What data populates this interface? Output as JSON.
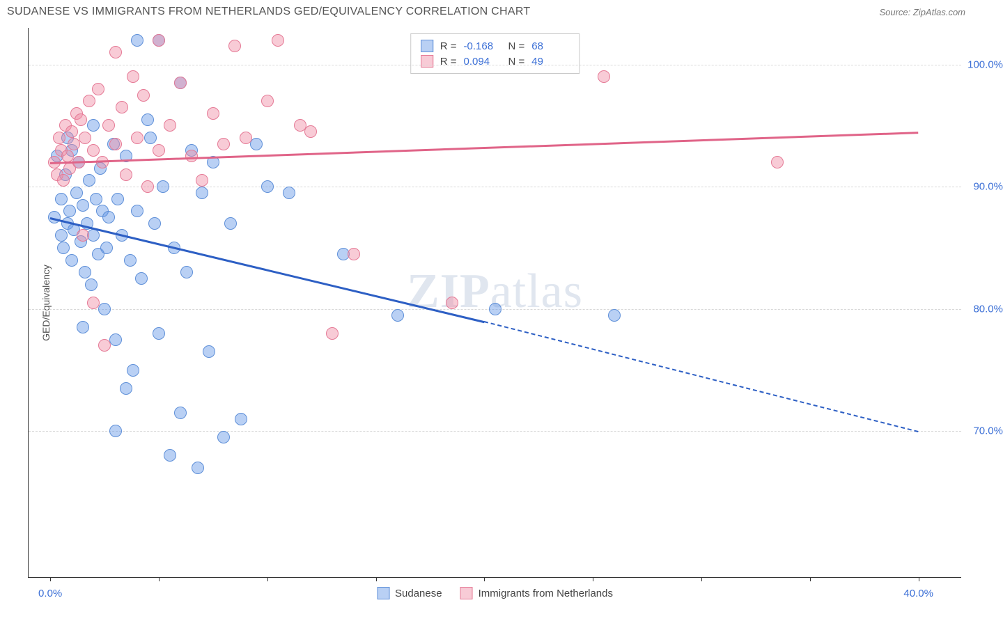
{
  "header": {
    "title": "SUDANESE VS IMMIGRANTS FROM NETHERLANDS GED/EQUIVALENCY CORRELATION CHART",
    "source": "Source: ZipAtlas.com"
  },
  "chart": {
    "type": "scatter",
    "watermark": {
      "strong": "ZIP",
      "light": "atlas"
    },
    "y_axis": {
      "label": "GED/Equivalency",
      "min": 58,
      "max": 103,
      "ticks": [
        70,
        80,
        90,
        100
      ],
      "tick_labels": [
        "70.0%",
        "80.0%",
        "90.0%",
        "100.0%"
      ],
      "grid_color": "#d8d8d8",
      "label_color": "#3b6fd6"
    },
    "x_axis": {
      "min": -1,
      "max": 42,
      "ticks": [
        0,
        5,
        10,
        15,
        20,
        25,
        30,
        35,
        40
      ],
      "labeled_ticks": {
        "0": "0.0%",
        "40": "40.0%"
      },
      "label_color": "#3b6fd6"
    },
    "legend_top": {
      "series_a": {
        "r_label": "R =",
        "r_value": "-0.168",
        "n_label": "N =",
        "n_value": "68"
      },
      "series_b": {
        "r_label": "R =",
        "r_value": "0.094",
        "n_label": "N =",
        "n_value": "49"
      }
    },
    "legend_bottom": {
      "a_label": "Sudanese",
      "b_label": "Immigrants from Netherlands"
    },
    "series": [
      {
        "id": "a",
        "name": "Sudanese",
        "marker_color": "rgba(100,150,230,0.45)",
        "marker_stroke": "#5e8fd8",
        "marker_size": 18,
        "trend": {
          "color": "#2d5fc4",
          "x1": 0,
          "y1": 87.5,
          "x2_solid": 20,
          "y2_solid": 79.0,
          "x2_dash": 40,
          "y2_dash": 70.0
        },
        "points": [
          [
            0.2,
            87.5
          ],
          [
            0.3,
            92.5
          ],
          [
            0.5,
            89.0
          ],
          [
            0.5,
            86.0
          ],
          [
            0.6,
            85.0
          ],
          [
            0.7,
            91.0
          ],
          [
            0.8,
            87.0
          ],
          [
            0.8,
            94.0
          ],
          [
            0.9,
            88.0
          ],
          [
            1.0,
            93.0
          ],
          [
            1.0,
            84.0
          ],
          [
            1.1,
            86.5
          ],
          [
            1.2,
            89.5
          ],
          [
            1.3,
            92.0
          ],
          [
            1.4,
            85.5
          ],
          [
            1.5,
            88.5
          ],
          [
            1.5,
            78.5
          ],
          [
            1.6,
            83.0
          ],
          [
            1.7,
            87.0
          ],
          [
            1.8,
            90.5
          ],
          [
            1.9,
            82.0
          ],
          [
            2.0,
            95.0
          ],
          [
            2.0,
            86.0
          ],
          [
            2.1,
            89.0
          ],
          [
            2.2,
            84.5
          ],
          [
            2.3,
            91.5
          ],
          [
            2.4,
            88.0
          ],
          [
            2.5,
            80.0
          ],
          [
            2.6,
            85.0
          ],
          [
            2.7,
            87.5
          ],
          [
            2.9,
            93.5
          ],
          [
            3.0,
            77.5
          ],
          [
            3.0,
            70.0
          ],
          [
            3.1,
            89.0
          ],
          [
            3.3,
            86.0
          ],
          [
            3.5,
            73.5
          ],
          [
            3.5,
            92.5
          ],
          [
            3.7,
            84.0
          ],
          [
            3.8,
            75.0
          ],
          [
            4.0,
            88.0
          ],
          [
            4.0,
            102.0
          ],
          [
            4.2,
            82.5
          ],
          [
            4.5,
            95.5
          ],
          [
            4.6,
            94.0
          ],
          [
            4.8,
            87.0
          ],
          [
            5.0,
            78.0
          ],
          [
            5.0,
            102.0
          ],
          [
            5.2,
            90.0
          ],
          [
            5.5,
            68.0
          ],
          [
            5.7,
            85.0
          ],
          [
            6.0,
            71.5
          ],
          [
            6.0,
            98.5
          ],
          [
            6.3,
            83.0
          ],
          [
            6.5,
            93.0
          ],
          [
            6.8,
            67.0
          ],
          [
            7.0,
            89.5
          ],
          [
            7.3,
            76.5
          ],
          [
            7.5,
            92.0
          ],
          [
            8.0,
            69.5
          ],
          [
            8.3,
            87.0
          ],
          [
            8.8,
            71.0
          ],
          [
            9.5,
            93.5
          ],
          [
            10.0,
            90.0
          ],
          [
            11.0,
            89.5
          ],
          [
            13.5,
            84.5
          ],
          [
            16.0,
            79.5
          ],
          [
            20.5,
            80.0
          ],
          [
            26.0,
            79.5
          ]
        ]
      },
      {
        "id": "b",
        "name": "Immigrants from Netherlands",
        "marker_color": "rgba(240,140,165,0.45)",
        "marker_stroke": "#e57a96",
        "marker_size": 18,
        "trend": {
          "color": "#e06488",
          "x1": 0,
          "y1": 92.0,
          "x2_solid": 40,
          "y2_solid": 94.5,
          "x2_dash": 40,
          "y2_dash": 94.5
        },
        "points": [
          [
            0.2,
            92.0
          ],
          [
            0.3,
            91.0
          ],
          [
            0.4,
            94.0
          ],
          [
            0.5,
            93.0
          ],
          [
            0.6,
            90.5
          ],
          [
            0.7,
            95.0
          ],
          [
            0.8,
            92.5
          ],
          [
            0.9,
            91.5
          ],
          [
            1.0,
            94.5
          ],
          [
            1.1,
            93.5
          ],
          [
            1.2,
            96.0
          ],
          [
            1.3,
            92.0
          ],
          [
            1.4,
            95.5
          ],
          [
            1.5,
            86.0
          ],
          [
            1.6,
            94.0
          ],
          [
            1.8,
            97.0
          ],
          [
            2.0,
            80.5
          ],
          [
            2.0,
            93.0
          ],
          [
            2.2,
            98.0
          ],
          [
            2.4,
            92.0
          ],
          [
            2.5,
            77.0
          ],
          [
            2.7,
            95.0
          ],
          [
            3.0,
            101.0
          ],
          [
            3.0,
            93.5
          ],
          [
            3.3,
            96.5
          ],
          [
            3.5,
            91.0
          ],
          [
            3.8,
            99.0
          ],
          [
            4.0,
            94.0
          ],
          [
            4.3,
            97.5
          ],
          [
            4.5,
            90.0
          ],
          [
            5.0,
            102.0
          ],
          [
            5.0,
            93.0
          ],
          [
            5.5,
            95.0
          ],
          [
            6.0,
            98.5
          ],
          [
            6.5,
            92.5
          ],
          [
            7.0,
            90.5
          ],
          [
            7.5,
            96.0
          ],
          [
            8.0,
            93.5
          ],
          [
            8.5,
            101.5
          ],
          [
            9.0,
            94.0
          ],
          [
            10.0,
            97.0
          ],
          [
            10.5,
            102.0
          ],
          [
            11.5,
            95.0
          ],
          [
            12.0,
            94.5
          ],
          [
            13.0,
            78.0
          ],
          [
            14.0,
            84.5
          ],
          [
            18.5,
            80.5
          ],
          [
            25.5,
            99.0
          ],
          [
            33.5,
            92.0
          ]
        ]
      }
    ],
    "colors": {
      "background": "#ffffff",
      "axis": "#333333",
      "title": "#555555"
    }
  }
}
